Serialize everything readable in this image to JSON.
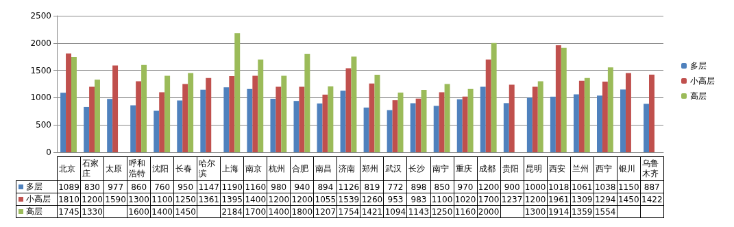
{
  "chart_data": {
    "type": "bar",
    "categories": [
      "北京",
      "石家庄",
      "太原",
      "呼和浩特",
      "沈阳",
      "长春",
      "哈尔滨",
      "上海",
      "南京",
      "杭州",
      "合肥",
      "南昌",
      "济南",
      "郑州",
      "武汉",
      "长沙",
      "南宁",
      "重庆",
      "成都",
      "贵阳",
      "昆明",
      "西安",
      "兰州",
      "西宁",
      "银川",
      "乌鲁木齐"
    ],
    "series": [
      {
        "name": "多层",
        "color": "#4f81bd",
        "values": [
          1089,
          830,
          977,
          860,
          760,
          950,
          1147,
          1190,
          1160,
          980,
          940,
          894,
          1126,
          819,
          772,
          898,
          850,
          970,
          1200,
          900,
          1000,
          1018,
          1061,
          1038,
          1150,
          887
        ]
      },
      {
        "name": "小高层",
        "color": "#c0504d",
        "values": [
          1810,
          1200,
          1590,
          1300,
          1100,
          1250,
          1361,
          1395,
          1400,
          1200,
          1200,
          1055,
          1539,
          1260,
          953,
          983,
          1100,
          1020,
          1700,
          1237,
          1200,
          1961,
          1309,
          1294,
          1450,
          1422
        ]
      },
      {
        "name": "高层",
        "color": "#9bbb59",
        "values": [
          1745,
          1330,
          null,
          1600,
          1400,
          1450,
          null,
          2184,
          1700,
          1400,
          1800,
          1207,
          1754,
          1421,
          1094,
          1143,
          1250,
          1160,
          2000,
          null,
          1300,
          1914,
          1359,
          1554,
          null,
          null
        ]
      }
    ],
    "ylim": [
      0,
      2500
    ],
    "yticks": [
      0,
      500,
      1000,
      1500,
      2000,
      2500
    ],
    "grid": "y",
    "legend": "right",
    "data_labels": true
  }
}
